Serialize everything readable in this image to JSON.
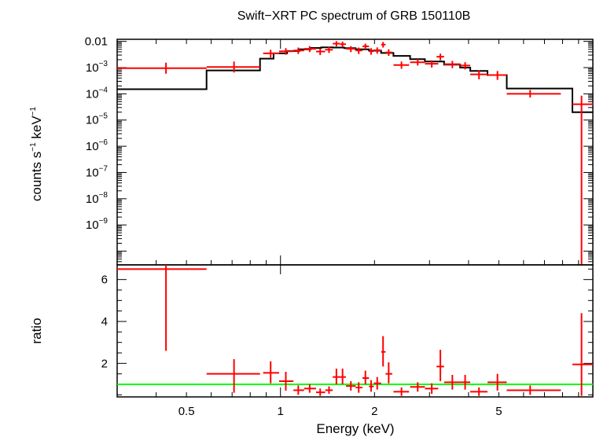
{
  "chart_data": {
    "type": "scatter",
    "title": "Swift−XRT PC spectrum of GRB 150110B",
    "xlabel": "Energy (keV)",
    "x_scale": "log",
    "xlim": [
      0.3,
      10
    ],
    "x_ticks": [
      {
        "value": 0.5,
        "label": "0.5"
      },
      {
        "value": 1,
        "label": "1"
      },
      {
        "value": 2,
        "label": "2"
      },
      {
        "value": 5,
        "label": "5"
      }
    ],
    "top_panel": {
      "ylabel_parts": {
        "a": "counts s",
        "b": "−1",
        "c": " keV",
        "d": "−1"
      },
      "y_scale": "log",
      "ylim": [
        3e-11,
        0.012
      ],
      "y_ticks": [
        {
          "value": 0.01,
          "base": "0.01",
          "exp": ""
        },
        {
          "value": 0.001,
          "base": "10",
          "exp": "−3"
        },
        {
          "value": 0.0001,
          "base": "10",
          "exp": "−4"
        },
        {
          "value": 1e-05,
          "base": "10",
          "exp": "−5"
        },
        {
          "value": 1e-06,
          "base": "10",
          "exp": "−6"
        },
        {
          "value": 1e-07,
          "base": "10",
          "exp": "−7"
        },
        {
          "value": 1e-08,
          "base": "10",
          "exp": "−8"
        },
        {
          "value": 1e-09,
          "base": "10",
          "exp": "−9"
        }
      ],
      "data": [
        {
          "x": 0.43,
          "xlo": 0.3,
          "xhi": 0.58,
          "y": 0.00095
        },
        {
          "x": 0.71,
          "xlo": 0.58,
          "xhi": 0.86,
          "y": 0.00105
        },
        {
          "x": 0.93,
          "xlo": 0.88,
          "xhi": 0.99,
          "y": 0.0035,
          "ylo": 0.0024,
          "yhi": 0.0048
        },
        {
          "x": 1.04,
          "xlo": 0.99,
          "xhi": 1.1,
          "y": 0.0042,
          "ylo": 0.0031,
          "yhi": 0.0055
        },
        {
          "x": 1.14,
          "xlo": 1.1,
          "xhi": 1.19,
          "y": 0.0045,
          "ylo": 0.0033,
          "yhi": 0.0058
        },
        {
          "x": 1.24,
          "xlo": 1.19,
          "xhi": 1.3,
          "y": 0.0052,
          "ylo": 0.0039,
          "yhi": 0.0066
        },
        {
          "x": 1.34,
          "xlo": 1.3,
          "xhi": 1.39,
          "y": 0.0041,
          "ylo": 0.003,
          "yhi": 0.0054
        },
        {
          "x": 1.43,
          "xlo": 1.39,
          "xhi": 1.47,
          "y": 0.0048,
          "ylo": 0.0036,
          "yhi": 0.0062
        },
        {
          "x": 1.51,
          "xlo": 1.47,
          "xhi": 1.55,
          "y": 0.0082,
          "ylo": 0.0064,
          "yhi": 0.0102
        },
        {
          "x": 1.58,
          "xlo": 1.55,
          "xhi": 1.62,
          "y": 0.0078,
          "ylo": 0.006,
          "yhi": 0.0098
        },
        {
          "x": 1.68,
          "xlo": 1.62,
          "xhi": 1.74,
          "y": 0.0052,
          "ylo": 0.0039,
          "yhi": 0.0066
        },
        {
          "x": 1.78,
          "xlo": 1.74,
          "xhi": 1.83,
          "y": 0.0045,
          "ylo": 0.0033,
          "yhi": 0.0058
        },
        {
          "x": 1.87,
          "xlo": 1.83,
          "xhi": 1.92,
          "y": 0.0065,
          "ylo": 0.005,
          "yhi": 0.0082
        },
        {
          "x": 1.95,
          "xlo": 1.92,
          "xhi": 1.99,
          "y": 0.0042,
          "ylo": 0.0031,
          "yhi": 0.0055
        },
        {
          "x": 2.04,
          "xlo": 1.99,
          "xhi": 2.1,
          "y": 0.0046,
          "ylo": 0.0034,
          "yhi": 0.0059
        },
        {
          "x": 2.13,
          "xlo": 2.1,
          "xhi": 2.17,
          "y": 0.0075,
          "ylo": 0.0058,
          "yhi": 0.0095
        },
        {
          "x": 2.22,
          "xlo": 2.17,
          "xhi": 2.28,
          "y": 0.0038,
          "ylo": 0.0028,
          "yhi": 0.005
        },
        {
          "x": 2.44,
          "xlo": 2.3,
          "xhi": 2.58,
          "y": 0.00125,
          "ylo": 0.0009,
          "yhi": 0.0017
        },
        {
          "x": 2.75,
          "xlo": 2.6,
          "xhi": 2.9,
          "y": 0.0016,
          "ylo": 0.0012,
          "yhi": 0.0021
        },
        {
          "x": 3.05,
          "xlo": 2.9,
          "xhi": 3.2,
          "y": 0.0014,
          "ylo": 0.001,
          "yhi": 0.0019
        },
        {
          "x": 3.25,
          "xlo": 3.16,
          "xhi": 3.34,
          "y": 0.0026,
          "ylo": 0.0019,
          "yhi": 0.0034
        },
        {
          "x": 3.55,
          "xlo": 3.34,
          "xhi": 3.76,
          "y": 0.00135,
          "ylo": 0.00095,
          "yhi": 0.0018
        },
        {
          "x": 3.9,
          "xlo": 3.76,
          "xhi": 4.05,
          "y": 0.0012,
          "ylo": 0.00085,
          "yhi": 0.0016
        },
        {
          "x": 4.32,
          "xlo": 4.05,
          "xhi": 4.6,
          "y": 0.00055,
          "ylo": 0.00036,
          "yhi": 0.00078
        },
        {
          "x": 4.95,
          "xlo": 4.6,
          "xhi": 5.3,
          "y": 0.00052,
          "ylo": 0.00034,
          "yhi": 0.00074
        },
        {
          "x": 6.3,
          "xlo": 5.3,
          "xhi": 7.9,
          "y": 0.0001,
          "ylo": 7.2e-05,
          "yhi": 0.00014
        },
        {
          "x": 9.2,
          "xlo": 8.6,
          "xhi": 10,
          "y": 4e-05,
          "ylo": 3e-11,
          "yhi": 8.5e-05
        }
      ],
      "model_steps": [
        {
          "xlo": 0.3,
          "xhi": 0.58,
          "y": 0.00015
        },
        {
          "xlo": 0.58,
          "xhi": 0.86,
          "y": 0.00078
        },
        {
          "xlo": 0.86,
          "xhi": 0.95,
          "y": 0.0022
        },
        {
          "xlo": 0.95,
          "xhi": 1.05,
          "y": 0.0035
        },
        {
          "xlo": 1.05,
          "xhi": 1.15,
          "y": 0.0043
        },
        {
          "xlo": 1.15,
          "xhi": 1.25,
          "y": 0.005
        },
        {
          "xlo": 1.25,
          "xhi": 1.35,
          "y": 0.0056
        },
        {
          "xlo": 1.35,
          "xhi": 1.47,
          "y": 0.0059
        },
        {
          "xlo": 1.47,
          "xhi": 1.6,
          "y": 0.0058
        },
        {
          "xlo": 1.6,
          "xhi": 1.74,
          "y": 0.0055
        },
        {
          "xlo": 1.74,
          "xhi": 1.92,
          "y": 0.005
        },
        {
          "xlo": 1.92,
          "xhi": 2.1,
          "y": 0.0044
        },
        {
          "xlo": 2.1,
          "xhi": 2.3,
          "y": 0.0036
        },
        {
          "xlo": 2.3,
          "xhi": 2.6,
          "y": 0.0028
        },
        {
          "xlo": 2.6,
          "xhi": 2.9,
          "y": 0.0021
        },
        {
          "xlo": 2.9,
          "xhi": 3.34,
          "y": 0.0017
        },
        {
          "xlo": 3.34,
          "xhi": 3.76,
          "y": 0.0013
        },
        {
          "xlo": 3.76,
          "xhi": 4.05,
          "y": 0.001
        },
        {
          "xlo": 4.05,
          "xhi": 4.6,
          "y": 0.00075
        },
        {
          "xlo": 4.6,
          "xhi": 5.3,
          "y": 0.00052
        },
        {
          "xlo": 5.3,
          "xhi": 7.9,
          "y": 0.00016
        },
        {
          "xlo": 7.9,
          "xhi": 8.6,
          "y": 0.00016
        },
        {
          "xlo": 8.6,
          "xhi": 10,
          "y": 2e-05
        }
      ]
    },
    "bottom_panel": {
      "ylabel": "ratio",
      "ylim": [
        0.4,
        6.7
      ],
      "y_ticks": [
        {
          "value": 2,
          "label": "2"
        },
        {
          "value": 4,
          "label": "4"
        },
        {
          "value": 6,
          "label": "6"
        }
      ],
      "reference_line": 1,
      "data": [
        {
          "x": 0.43,
          "xlo": 0.3,
          "xhi": 0.58,
          "y": 6.5,
          "ylo": 2.6,
          "yhi": 6.7
        },
        {
          "x": 0.71,
          "xlo": 0.58,
          "xhi": 0.86,
          "y": 1.5,
          "ylo": 0.6,
          "yhi": 2.2
        },
        {
          "x": 0.93,
          "xlo": 0.88,
          "xhi": 0.99,
          "y": 1.55,
          "ylo": 1.05,
          "yhi": 2.1
        },
        {
          "x": 1.04,
          "xlo": 0.99,
          "xhi": 1.1,
          "y": 1.15,
          "ylo": 0.7,
          "yhi": 1.6
        },
        {
          "x": 1.14,
          "xlo": 1.1,
          "xhi": 1.19,
          "y": 0.72,
          "ylo": 0.5,
          "yhi": 0.95
        },
        {
          "x": 1.24,
          "xlo": 1.19,
          "xhi": 1.3,
          "y": 0.8,
          "ylo": 0.6,
          "yhi": 1.0
        },
        {
          "x": 1.34,
          "xlo": 1.3,
          "xhi": 1.39,
          "y": 0.62,
          "ylo": 0.45,
          "yhi": 0.8
        },
        {
          "x": 1.43,
          "xlo": 1.39,
          "xhi": 1.47,
          "y": 0.72,
          "ylo": 0.55,
          "yhi": 0.9
        },
        {
          "x": 1.51,
          "xlo": 1.47,
          "xhi": 1.55,
          "y": 1.35,
          "ylo": 1.0,
          "yhi": 1.75
        },
        {
          "x": 1.58,
          "xlo": 1.55,
          "xhi": 1.62,
          "y": 1.35,
          "ylo": 1.0,
          "yhi": 1.75
        },
        {
          "x": 1.68,
          "xlo": 1.62,
          "xhi": 1.74,
          "y": 0.92,
          "ylo": 0.7,
          "yhi": 1.15
        },
        {
          "x": 1.78,
          "xlo": 1.74,
          "xhi": 1.83,
          "y": 0.85,
          "ylo": 0.6,
          "yhi": 1.1
        },
        {
          "x": 1.87,
          "xlo": 1.83,
          "xhi": 1.92,
          "y": 1.3,
          "ylo": 1.0,
          "yhi": 1.65
        },
        {
          "x": 1.95,
          "xlo": 1.92,
          "xhi": 1.99,
          "y": 0.9,
          "ylo": 0.65,
          "yhi": 1.2
        },
        {
          "x": 2.04,
          "xlo": 1.99,
          "xhi": 2.1,
          "y": 1.05,
          "ylo": 0.75,
          "yhi": 1.35
        },
        {
          "x": 2.13,
          "xlo": 2.1,
          "xhi": 2.17,
          "y": 2.55,
          "ylo": 1.85,
          "yhi": 3.3
        },
        {
          "x": 2.22,
          "xlo": 2.17,
          "xhi": 2.28,
          "y": 1.5,
          "ylo": 1.05,
          "yhi": 2.05
        },
        {
          "x": 2.44,
          "xlo": 2.3,
          "xhi": 2.58,
          "y": 0.65,
          "ylo": 0.45,
          "yhi": 0.85
        },
        {
          "x": 2.75,
          "xlo": 2.6,
          "xhi": 2.9,
          "y": 0.88,
          "ylo": 0.65,
          "yhi": 1.1
        },
        {
          "x": 3.05,
          "xlo": 2.9,
          "xhi": 3.2,
          "y": 0.8,
          "ylo": 0.55,
          "yhi": 1.05
        },
        {
          "x": 3.25,
          "xlo": 3.16,
          "xhi": 3.34,
          "y": 1.85,
          "ylo": 1.15,
          "yhi": 2.65
        },
        {
          "x": 3.55,
          "xlo": 3.34,
          "xhi": 3.76,
          "y": 1.1,
          "ylo": 0.75,
          "yhi": 1.45
        },
        {
          "x": 3.9,
          "xlo": 3.76,
          "xhi": 4.05,
          "y": 1.1,
          "ylo": 0.75,
          "yhi": 1.45
        },
        {
          "x": 4.32,
          "xlo": 4.05,
          "xhi": 4.6,
          "y": 0.65,
          "ylo": 0.45,
          "yhi": 0.85
        },
        {
          "x": 4.95,
          "xlo": 4.6,
          "xhi": 5.3,
          "y": 1.1,
          "ylo": 0.7,
          "yhi": 1.5
        },
        {
          "x": 6.3,
          "xlo": 5.3,
          "xhi": 7.9,
          "y": 0.72,
          "ylo": 0.5,
          "yhi": 0.95
        },
        {
          "x": 9.2,
          "xlo": 8.6,
          "xhi": 10,
          "y": 1.95,
          "ylo": 0.45,
          "yhi": 4.4
        }
      ]
    },
    "colors": {
      "data": "#ff0000",
      "model": "#000000",
      "reference_line": "#00ff00",
      "axes": "#000000"
    },
    "grid": false
  }
}
